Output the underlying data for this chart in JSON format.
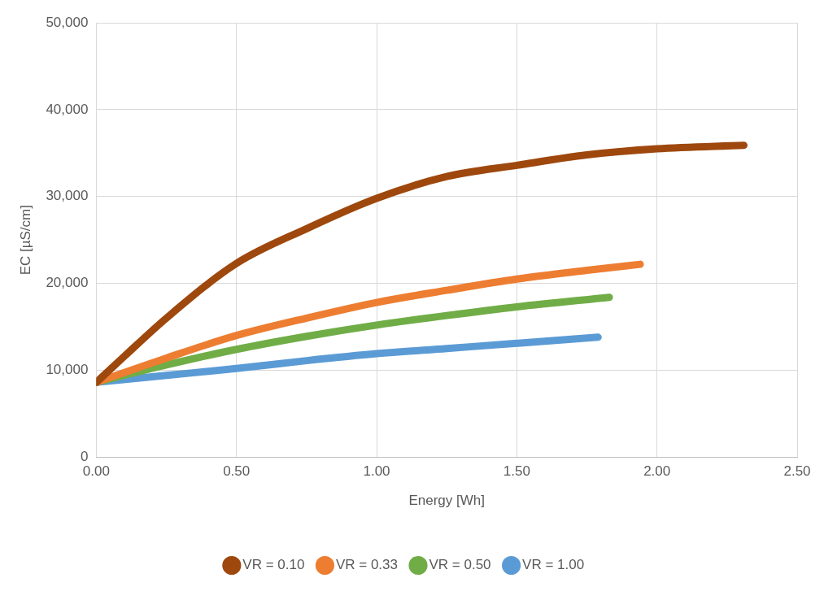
{
  "chart_data": {
    "type": "line",
    "xlabel": "Energy [Wh]",
    "ylabel": "EC [µS/cm]",
    "xlim": [
      0,
      2.5
    ],
    "ylim": [
      0,
      50000
    ],
    "xticks": [
      {
        "value": 0,
        "label": "0.00"
      },
      {
        "value": 0.5,
        "label": "0.50"
      },
      {
        "value": 1,
        "label": "1.00"
      },
      {
        "value": 1.5,
        "label": "1.50"
      },
      {
        "value": 2,
        "label": "2.00"
      },
      {
        "value": 2.5,
        "label": "2.50"
      }
    ],
    "yticks": [
      {
        "value": 0,
        "label": "0"
      },
      {
        "value": 10000,
        "label": "10,000"
      },
      {
        "value": 20000,
        "label": "20,000"
      },
      {
        "value": 30000,
        "label": "30,000"
      },
      {
        "value": 40000,
        "label": "40,000"
      },
      {
        "value": 50000,
        "label": "50,000"
      }
    ],
    "grid": true,
    "legend": "bottom",
    "line_style": "solid",
    "series": [
      {
        "name": "VR = 0.10",
        "color": "#9e480e",
        "x": [
          0,
          0.1,
          0.25,
          0.5,
          0.75,
          1,
          1.25,
          1.5,
          1.75,
          2,
          2.31
        ],
        "values": [
          8600,
          11600,
          16000,
          22300,
          26300,
          29800,
          32300,
          33600,
          34800,
          35500,
          35900
        ]
      },
      {
        "name": "VR = 0.33",
        "color": "#ed7d31",
        "x": [
          0,
          0.25,
          0.5,
          0.75,
          1,
          1.25,
          1.5,
          1.75,
          1.94
        ],
        "values": [
          8600,
          11400,
          14000,
          16000,
          17800,
          19200,
          20500,
          21500,
          22200
        ]
      },
      {
        "name": "VR = 0.50",
        "color": "#70ad47",
        "x": [
          0,
          0.25,
          0.5,
          0.75,
          1,
          1.25,
          1.5,
          1.83
        ],
        "values": [
          8600,
          10600,
          12400,
          13900,
          15200,
          16300,
          17300,
          18400
        ]
      },
      {
        "name": "VR = 1.00",
        "color": "#5b9bd5",
        "x": [
          0,
          0.25,
          0.5,
          0.75,
          1,
          1.25,
          1.5,
          1.79
        ],
        "values": [
          8600,
          9400,
          10200,
          11100,
          11900,
          12500,
          13100,
          13800
        ]
      }
    ]
  }
}
